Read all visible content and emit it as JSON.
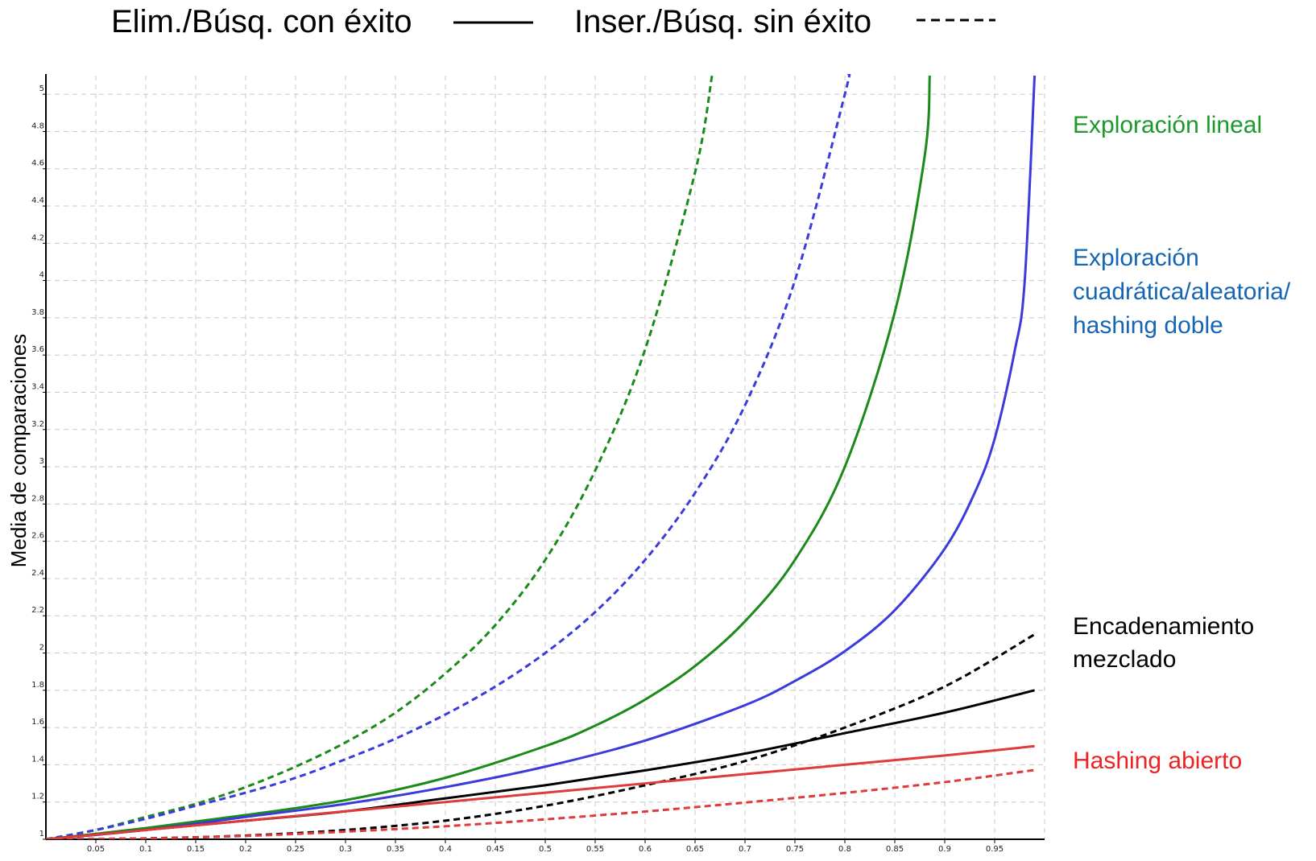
{
  "chart_data": {
    "type": "line",
    "title": "",
    "xlabel": "",
    "ylabel": "Media de comparaciones",
    "xlim": [
      0,
      1
    ],
    "ylim": [
      1,
      5.1
    ],
    "grid": true,
    "x_ticks": [
      0.05,
      0.1,
      0.15,
      0.2,
      0.25,
      0.3,
      0.35,
      0.4,
      0.45,
      0.5,
      0.55,
      0.6,
      0.65,
      0.7,
      0.75,
      0.8,
      0.85,
      0.9,
      0.95
    ],
    "y_ticks": [
      1,
      1.2,
      1.4,
      1.6,
      1.8,
      2,
      2.2,
      2.4,
      2.6,
      2.8,
      3,
      3.2,
      3.4,
      3.6,
      3.8,
      4,
      4.2,
      4.4,
      4.6,
      4.8,
      5
    ],
    "legend": {
      "placement": "top",
      "entries": [
        {
          "label": "Elim./Búsq. con éxito",
          "style": "solid"
        },
        {
          "label": "Inser./Búsq. sin éxito",
          "style": "dashed"
        }
      ]
    },
    "annotations": [
      {
        "text": "Exploración lineal",
        "color": "#1a9a2a"
      },
      {
        "text": "Exploración",
        "color": "#1565b5"
      },
      {
        "text": "cuadrática/aleatoria/",
        "color": "#1565b5"
      },
      {
        "text": "hashing doble",
        "color": "#1565b5"
      },
      {
        "text": "Encadenamiento",
        "color": "#000000"
      },
      {
        "text": "mezclado",
        "color": "#000000"
      },
      {
        "text": "Hashing abierto",
        "color": "#ee2222"
      }
    ],
    "series": [
      {
        "color": "#1a8a1a",
        "style": "dashed",
        "x": [
          0,
          0.05,
          0.1,
          0.15,
          0.2,
          0.25,
          0.3,
          0.35,
          0.4,
          0.45,
          0.5,
          0.55,
          0.6,
          0.65,
          0.667
        ],
        "y": [
          1.0,
          1.05,
          1.12,
          1.19,
          1.28,
          1.39,
          1.52,
          1.68,
          1.89,
          2.15,
          2.5,
          2.98,
          3.63,
          4.58,
          5.1
        ]
      },
      {
        "color": "#3b3bdb",
        "style": "dashed",
        "x": [
          0,
          0.05,
          0.1,
          0.15,
          0.2,
          0.25,
          0.3,
          0.35,
          0.4,
          0.45,
          0.5,
          0.55,
          0.6,
          0.65,
          0.7,
          0.75,
          0.8,
          0.803
        ],
        "y": [
          1.0,
          1.05,
          1.11,
          1.18,
          1.25,
          1.33,
          1.43,
          1.54,
          1.67,
          1.82,
          2.0,
          2.22,
          2.5,
          2.86,
          3.33,
          4.0,
          5.0,
          5.1
        ]
      },
      {
        "color": "#1a8a1a",
        "style": "solid",
        "x": [
          0,
          0.1,
          0.2,
          0.3,
          0.4,
          0.5,
          0.55,
          0.6,
          0.65,
          0.7,
          0.75,
          0.8,
          0.85,
          0.88,
          0.885
        ],
        "y": [
          1.0,
          1.06,
          1.13,
          1.21,
          1.33,
          1.5,
          1.61,
          1.75,
          1.93,
          2.17,
          2.5,
          3.0,
          3.83,
          4.67,
          5.1
        ]
      },
      {
        "color": "#3b3bdb",
        "style": "solid",
        "x": [
          0,
          0.1,
          0.2,
          0.3,
          0.4,
          0.5,
          0.6,
          0.7,
          0.75,
          0.8,
          0.85,
          0.9,
          0.93,
          0.95,
          0.97,
          0.98,
          0.99
        ],
        "y": [
          1.0,
          1.05,
          1.12,
          1.19,
          1.28,
          1.39,
          1.53,
          1.72,
          1.85,
          2.01,
          2.23,
          2.56,
          2.86,
          3.15,
          3.62,
          3.99,
          5.1
        ]
      },
      {
        "color": "#000000",
        "style": "dashed",
        "x": [
          0,
          0.1,
          0.2,
          0.3,
          0.4,
          0.5,
          0.6,
          0.7,
          0.8,
          0.9,
          0.99
        ],
        "y": [
          1.0,
          1.005,
          1.02,
          1.05,
          1.1,
          1.18,
          1.29,
          1.42,
          1.6,
          1.82,
          2.1
        ]
      },
      {
        "color": "#000000",
        "style": "solid",
        "x": [
          0,
          0.1,
          0.2,
          0.3,
          0.4,
          0.5,
          0.6,
          0.7,
          0.8,
          0.9,
          0.99
        ],
        "y": [
          1.0,
          1.05,
          1.1,
          1.15,
          1.22,
          1.29,
          1.37,
          1.46,
          1.57,
          1.68,
          1.8
        ]
      },
      {
        "color": "#e03a3a",
        "style": "solid",
        "x": [
          0,
          0.1,
          0.2,
          0.3,
          0.4,
          0.5,
          0.6,
          0.7,
          0.8,
          0.9,
          0.99
        ],
        "y": [
          1.0,
          1.05,
          1.1,
          1.15,
          1.2,
          1.25,
          1.3,
          1.35,
          1.4,
          1.45,
          1.5
        ]
      },
      {
        "color": "#e03a3a",
        "style": "dashed",
        "x": [
          0,
          0.1,
          0.2,
          0.3,
          0.4,
          0.5,
          0.6,
          0.7,
          0.8,
          0.9,
          0.99
        ],
        "y": [
          1.0,
          1.005,
          1.018,
          1.041,
          1.07,
          1.107,
          1.149,
          1.197,
          1.249,
          1.307,
          1.372
        ]
      }
    ]
  }
}
